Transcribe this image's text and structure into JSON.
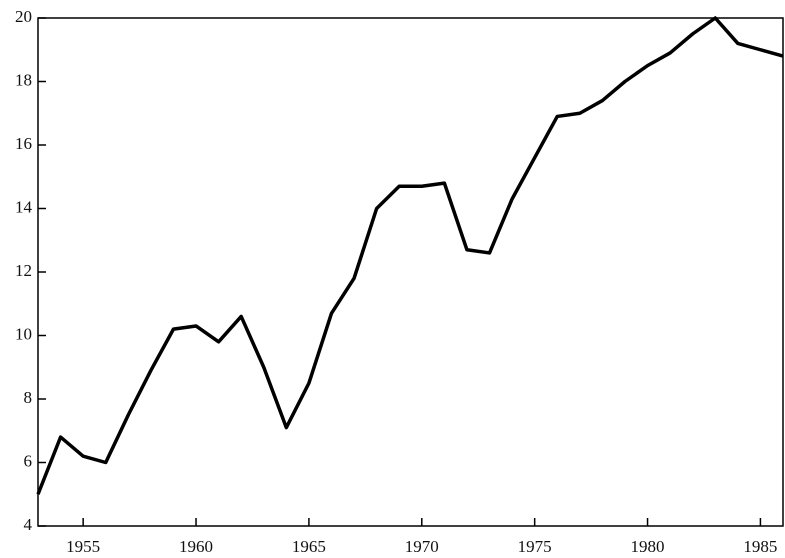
{
  "chart_data": {
    "type": "line",
    "x": [
      1953,
      1954,
      1955,
      1956,
      1957,
      1958,
      1959,
      1960,
      1961,
      1962,
      1963,
      1964,
      1965,
      1966,
      1967,
      1968,
      1969,
      1970,
      1971,
      1972,
      1973,
      1974,
      1975,
      1976,
      1977,
      1978,
      1979,
      1980,
      1981,
      1982,
      1983,
      1984,
      1985,
      1986
    ],
    "series": [
      {
        "color": "#000000",
        "values": [
          5.0,
          6.8,
          6.2,
          6.0,
          7.5,
          8.9,
          10.2,
          10.3,
          9.8,
          10.6,
          9.0,
          7.1,
          8.5,
          10.7,
          11.8,
          14.0,
          14.7,
          14.7,
          14.8,
          12.7,
          12.6,
          14.3,
          15.6,
          16.9,
          17.0,
          17.4,
          18.0,
          18.5,
          18.9,
          19.5,
          20.0,
          19.2,
          19.0,
          18.8
        ]
      }
    ],
    "xlim": [
      1953,
      1986
    ],
    "xticks": [
      1955,
      1960,
      1965,
      1970,
      1975,
      1980,
      1985
    ],
    "ylim": [
      4,
      20
    ],
    "yticks": [
      4,
      6,
      8,
      10,
      12,
      14,
      16,
      18,
      20
    ]
  }
}
